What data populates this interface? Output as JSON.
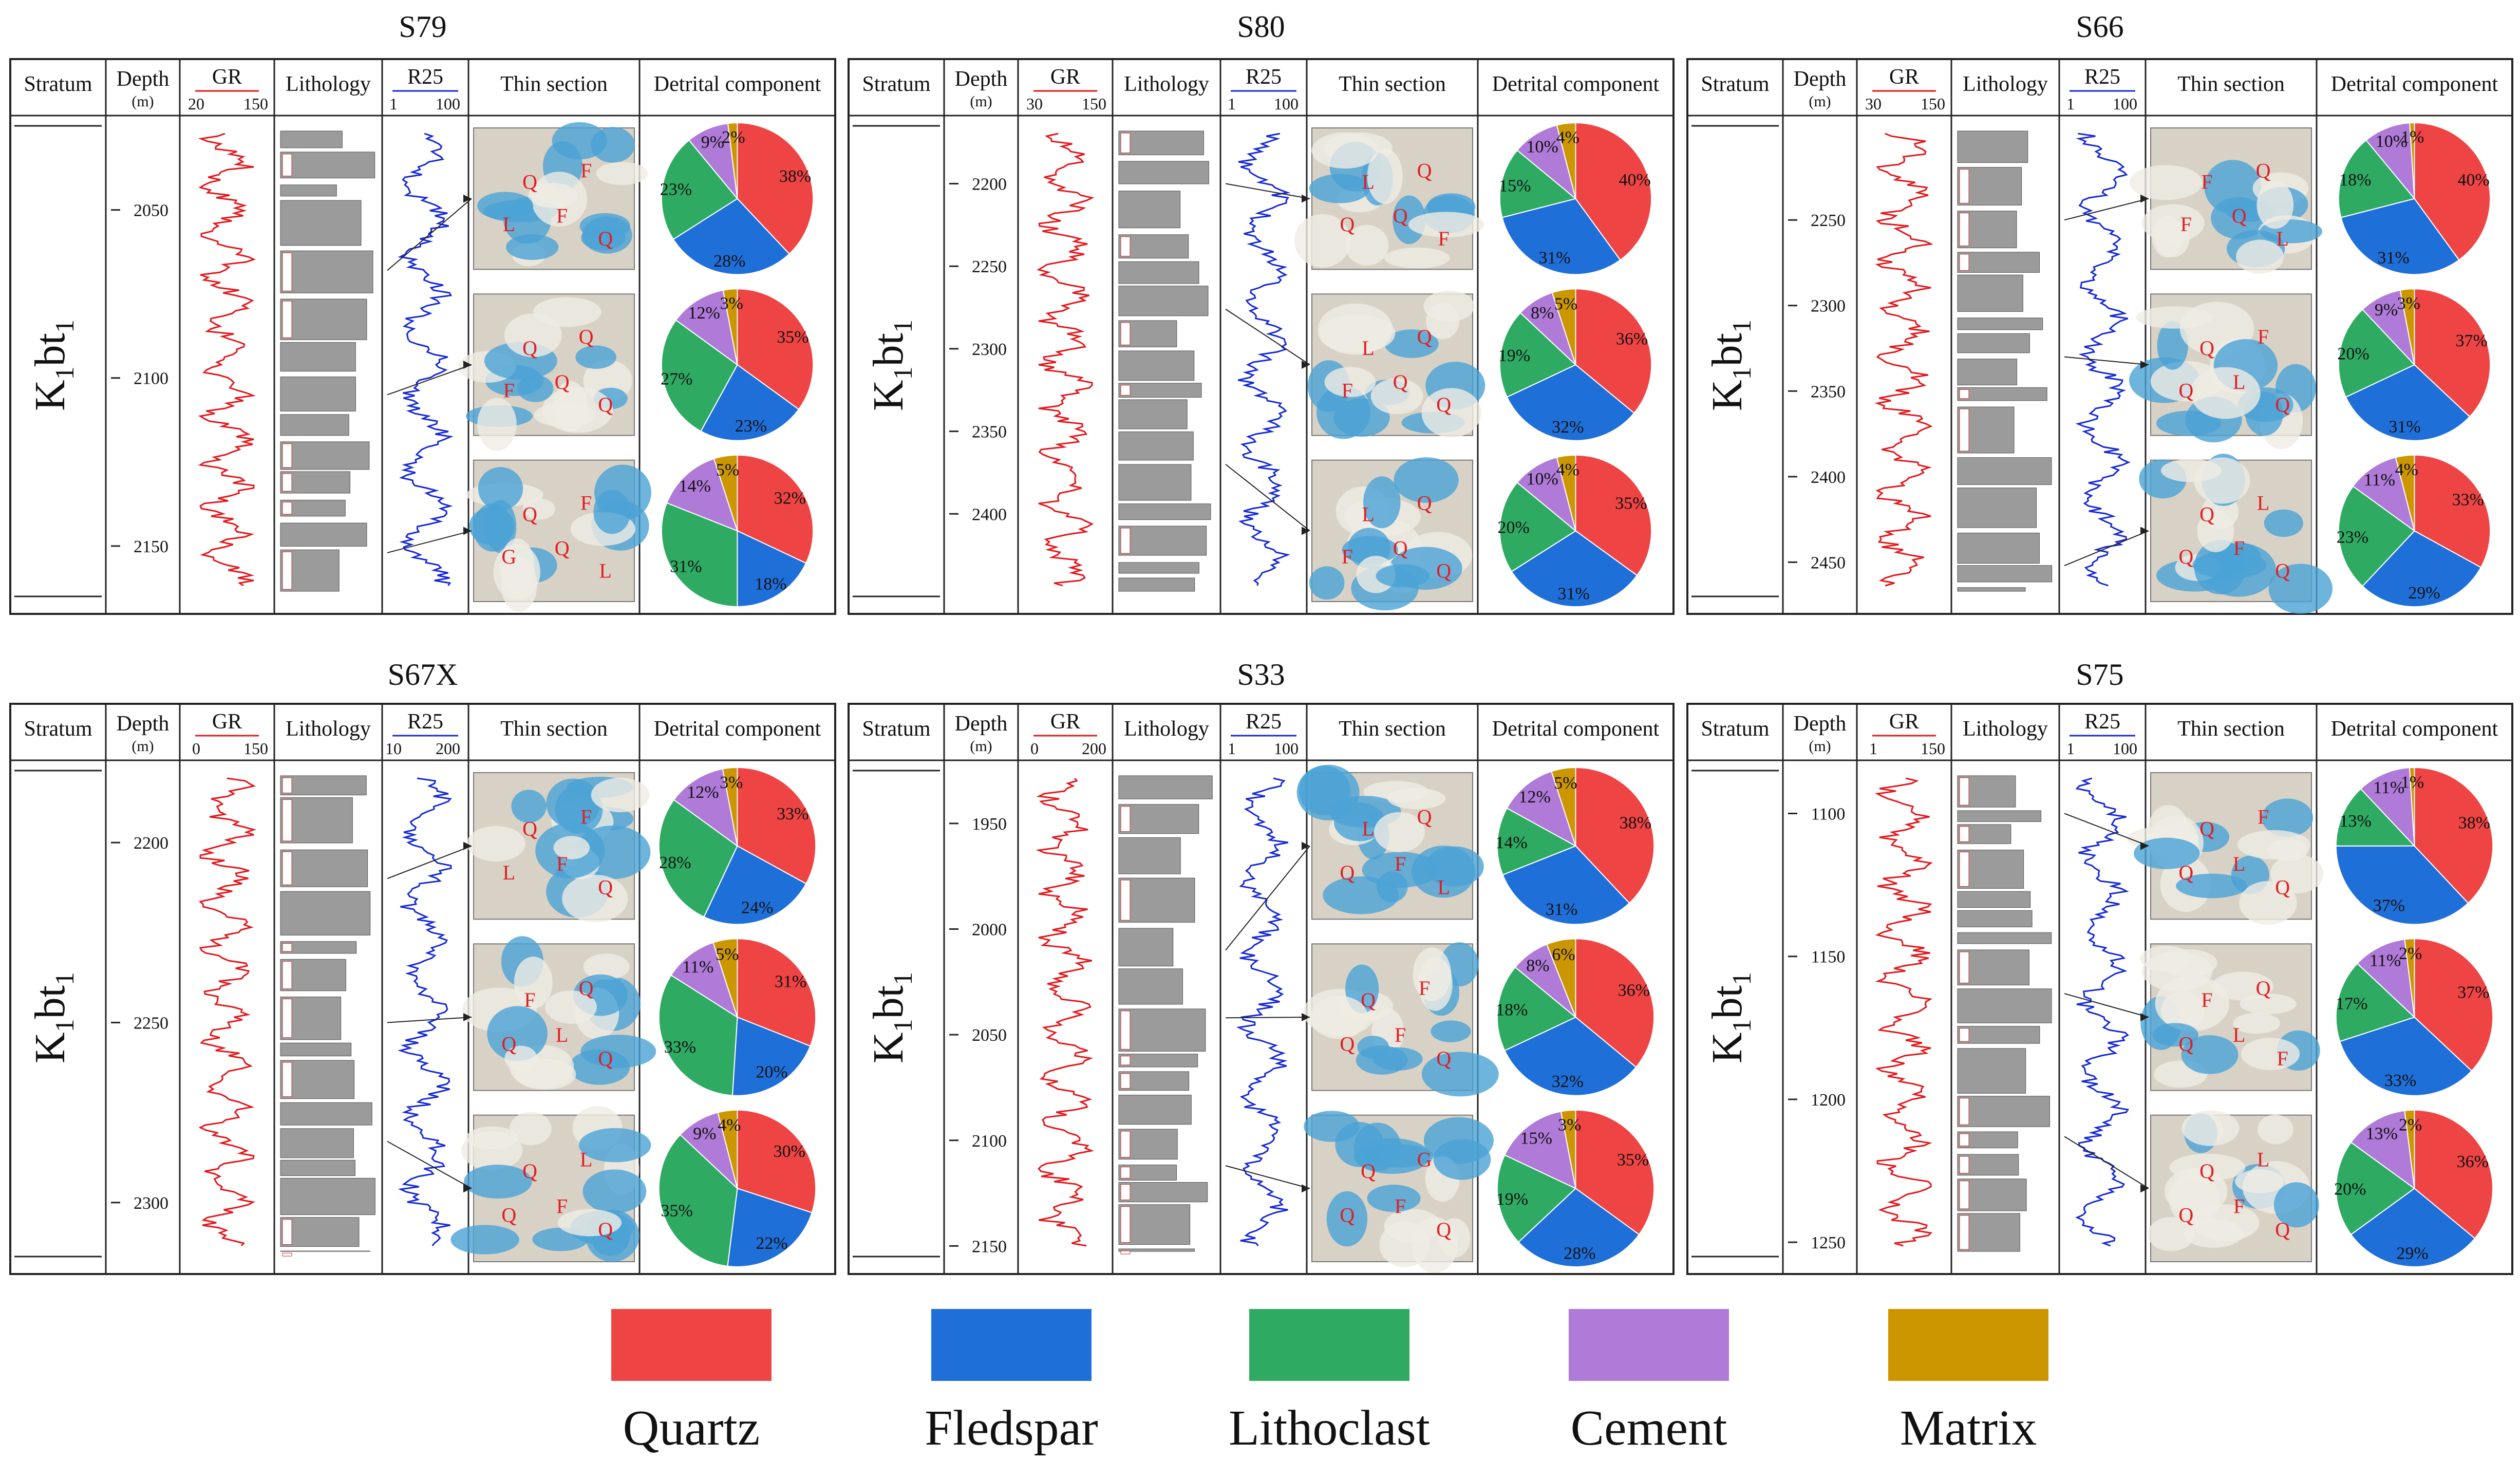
{
  "figure": {
    "colors": {
      "quartz": "#ef4444",
      "feldspar": "#1f6fd9",
      "lithoclast": "#2eaa63",
      "cement": "#b07ad8",
      "matrix": "#cc9600",
      "gr_curve": "#e4161a",
      "r25_curve": "#1428d6",
      "lithology_fill": "#9b9b9b",
      "thin_section_pore": "#4aa3d6"
    },
    "headers": {
      "stratum": "Stratum",
      "depth": "Depth",
      "depth_unit": "(m)",
      "gr": "GR",
      "lithology": "Lithology",
      "r25": "R25",
      "thin_section": "Thin section",
      "detrital": "Detrital component"
    },
    "stratum_main": "K",
    "stratum_sub1": "1",
    "stratum_bt": "bt",
    "stratum_sub2": "1",
    "legend": [
      {
        "label": "Quartz",
        "color_key": "quartz"
      },
      {
        "label": "Fledspar",
        "color_key": "feldspar"
      },
      {
        "label": "Lithoclast",
        "color_key": "lithoclast"
      },
      {
        "label": "Cement",
        "color_key": "cement"
      },
      {
        "label": "Matrix",
        "color_key": "matrix"
      }
    ]
  },
  "chart_data": [
    {
      "type": "pie",
      "well": "S79",
      "gr_scale": [
        "20",
        "150"
      ],
      "r25_scale": [
        "1",
        "100"
      ],
      "depth_range": [
        2025,
        2165
      ],
      "depth_ticks": [
        2050,
        2100,
        2150
      ],
      "samples": [
        {
          "depth": 2068,
          "letters": [
            "Q",
            "F",
            "L",
            "F",
            "Q"
          ],
          "values": [
            38,
            28,
            23,
            9,
            2
          ]
        },
        {
          "depth": 2105,
          "letters": [
            "Q",
            "Q",
            "F",
            "Q",
            "Q"
          ],
          "values": [
            35,
            23,
            27,
            12,
            3
          ]
        },
        {
          "depth": 2152,
          "letters": [
            "Q",
            "F",
            "G",
            "Q",
            "L"
          ],
          "values": [
            32,
            18,
            31,
            14,
            5
          ]
        }
      ]
    },
    {
      "type": "pie",
      "well": "S80",
      "gr_scale": [
        "30",
        "150"
      ],
      "r25_scale": [
        "1",
        "100"
      ],
      "depth_range": [
        2165,
        2450
      ],
      "depth_ticks": [
        2200,
        2250,
        2300,
        2350,
        2400
      ],
      "samples": [
        {
          "depth": 2200,
          "letters": [
            "L",
            "Q",
            "Q",
            "Q",
            "F"
          ],
          "values": [
            40,
            31,
            15,
            10,
            4
          ]
        },
        {
          "depth": 2276,
          "letters": [
            "L",
            "Q",
            "F",
            "Q",
            "Q"
          ],
          "values": [
            36,
            32,
            19,
            8,
            5
          ]
        },
        {
          "depth": 2370,
          "letters": [
            "L",
            "Q",
            "F",
            "Q",
            "Q"
          ],
          "values": [
            35,
            31,
            20,
            10,
            4
          ]
        }
      ]
    },
    {
      "type": "pie",
      "well": "S66",
      "gr_scale": [
        "30",
        "150"
      ],
      "r25_scale": [
        "1",
        "100"
      ],
      "depth_range": [
        2195,
        2470
      ],
      "depth_ticks": [
        2250,
        2300,
        2350,
        2400,
        2450
      ],
      "samples": [
        {
          "depth": 2250,
          "letters": [
            "F",
            "Q",
            "F",
            "Q",
            "L"
          ],
          "values": [
            40,
            31,
            18,
            10,
            1
          ]
        },
        {
          "depth": 2330,
          "letters": [
            "Q",
            "F",
            "Q",
            "L",
            "Q"
          ],
          "values": [
            37,
            31,
            20,
            9,
            3
          ]
        },
        {
          "depth": 2452,
          "letters": [
            "Q",
            "L",
            "Q",
            "F",
            "Q"
          ],
          "values": [
            33,
            29,
            23,
            11,
            4
          ]
        }
      ]
    },
    {
      "type": "pie",
      "well": "S67X",
      "gr_scale": [
        "0",
        "150"
      ],
      "r25_scale": [
        "10",
        "200"
      ],
      "depth_range": [
        2180,
        2315
      ],
      "depth_ticks": [
        2200,
        2250,
        2300
      ],
      "samples": [
        {
          "depth": 2210,
          "letters": [
            "Q",
            "F",
            "L",
            "F",
            "Q"
          ],
          "values": [
            33,
            24,
            28,
            12,
            3
          ]
        },
        {
          "depth": 2250,
          "letters": [
            "F",
            "Q",
            "Q",
            "L",
            "Q"
          ],
          "values": [
            31,
            20,
            33,
            11,
            5
          ]
        },
        {
          "depth": 2283,
          "letters": [
            "Q",
            "L",
            "Q",
            "F",
            "Q"
          ],
          "values": [
            30,
            22,
            35,
            9,
            4
          ]
        }
      ]
    },
    {
      "type": "pie",
      "well": "S33",
      "gr_scale": [
        "0",
        "200"
      ],
      "r25_scale": [
        "1",
        "100"
      ],
      "depth_range": [
        1925,
        2155
      ],
      "depth_ticks": [
        1950,
        2000,
        2050,
        2100,
        2150
      ],
      "samples": [
        {
          "depth": 2010,
          "letters": [
            "L",
            "Q",
            "Q",
            "F",
            "L"
          ],
          "values": [
            38,
            31,
            14,
            12,
            5
          ]
        },
        {
          "depth": 2042,
          "letters": [
            "Q",
            "F",
            "Q",
            "F",
            "Q"
          ],
          "values": [
            36,
            32,
            18,
            8,
            6
          ]
        },
        {
          "depth": 2112,
          "letters": [
            "Q",
            "G",
            "Q",
            "F",
            "Q"
          ],
          "values": [
            35,
            28,
            19,
            15,
            3
          ]
        }
      ]
    },
    {
      "type": "pie",
      "well": "S75",
      "gr_scale": [
        "1",
        "150"
      ],
      "r25_scale": [
        "1",
        "100"
      ],
      "depth_range": [
        1085,
        1255
      ],
      "depth_ticks": [
        1100,
        1150,
        1200,
        1250
      ],
      "samples": [
        {
          "depth": 1100,
          "letters": [
            "Q",
            "F",
            "Q",
            "L",
            "Q"
          ],
          "values": [
            38,
            37,
            13,
            11,
            1
          ]
        },
        {
          "depth": 1163,
          "letters": [
            "F",
            "Q",
            "Q",
            "L",
            "F"
          ],
          "values": [
            37,
            33,
            17,
            11,
            2
          ]
        },
        {
          "depth": 1213,
          "letters": [
            "Q",
            "L",
            "Q",
            "F",
            "Q"
          ],
          "values": [
            36,
            29,
            20,
            13,
            2
          ]
        }
      ]
    }
  ]
}
